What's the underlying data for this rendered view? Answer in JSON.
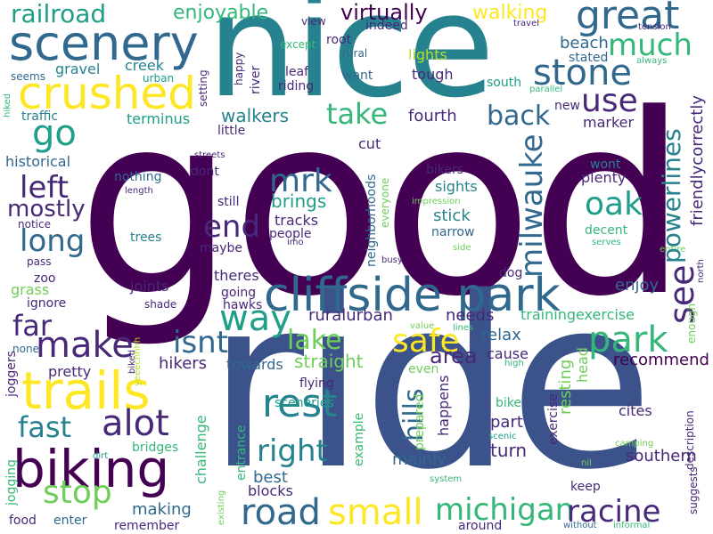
{
  "background": "#ffffff",
  "palette": {
    "dark_purple": "#440154",
    "indigo": "#482878",
    "blue": "#3b528b",
    "steel": "#31688e",
    "teal": "#26828e",
    "green_teal": "#1f9e89",
    "green": "#35b779",
    "light_green": "#6ece58",
    "lime": "#b5de2b",
    "yellow": "#fde725"
  },
  "words": {
    "good": "good",
    "ride": "ride",
    "nice": "nice",
    "cliffside_park": "cliffside park",
    "biking": "biking",
    "scenery": "scenery",
    "crushed": "crushed",
    "trails": "trails",
    "great": "great",
    "stone": "stone",
    "much": "much",
    "use": "use",
    "back": "back",
    "take": "take",
    "go": "go",
    "railroad": "railroad",
    "enjoyable": "enjoyable",
    "virtually": "virtually",
    "walking": "walking",
    "mrk": "mrk",
    "left": "left",
    "mostly": "mostly",
    "long": "long",
    "end": "end",
    "brings": "brings",
    "tracks": "tracks",
    "people": "people",
    "milwauke": "milwauke",
    "oak": "oak",
    "powerlines": "powerlines",
    "see": "see",
    "friendlycorrectly": "friendlycorrectly",
    "way": "way",
    "far": "far",
    "make": "make",
    "isnt": "isnt",
    "alot": "alot",
    "fast": "fast",
    "stop": "stop",
    "rest": "rest",
    "right": "right",
    "road": "road",
    "small": "small",
    "michigan": "michigan",
    "racine": "racine",
    "park": "park",
    "safe": "safe",
    "lake": "lake",
    "hills": "hills",
    "area": "area",
    "straight": "straight",
    "hikers": "hikers",
    "recommend": "recommend",
    "resting": "resting",
    "exercise": "exercise",
    "part": "part",
    "turn": "turn",
    "southern": "southern",
    "mainly": "mainly",
    "making": "making",
    "best": "best",
    "blocks": "blocks",
    "sceneries": "sceneries",
    "bike": "bike",
    "cites": "cites",
    "keep": "keep",
    "head": "head",
    "enjoy": "enjoy",
    "ruralurban": "ruralurban",
    "needs": "needs",
    "trainingexercise": "trainingexercise",
    "relax": "relax",
    "cause": "cause",
    "even": "even",
    "happens": "happens",
    "prepared": "prepared",
    "example": "example",
    "entrance": "entrance",
    "flying": "flying",
    "towards": "towards",
    "pretty": "pretty",
    "none": "none",
    "joggers": "joggers",
    "jogging": "jogging",
    "food": "food",
    "enter": "enter",
    "remember": "remember",
    "around": "around",
    "without": "without",
    "informal": "informal",
    "suggests": "suggests",
    "description": "description",
    "camping": "camping",
    "nil": "nil",
    "system": "system",
    "dirt": "dirt",
    "existing": "existing",
    "bridges": "bridges",
    "challenge": "challenge",
    "biked": "biked",
    "yeeechhhh": "yeeechhhh",
    "scenic": "scenic",
    "high": "high",
    "lines": "lines",
    "value": "value",
    "busy": "busy",
    "side": "side",
    "imo": "imo",
    "narrow": "narrow",
    "stick": "stick",
    "neighborhoods": "neighborhoods",
    "everyone": "everyone",
    "impression": "impression",
    "bikers": "bikers",
    "sights": "sights",
    "wont": "wont",
    "plenty": "plenty",
    "decent": "decent",
    "serves": "serves",
    "entire": "entire",
    "north": "north",
    "enough": "enough",
    "dog": "dog",
    "zoo": "zoo",
    "grass": "grass",
    "ignore": "ignore",
    "pass": "pass",
    "notice": "notice",
    "trees": "trees",
    "joints": "joints",
    "shade": "shade",
    "hawks": "hawks",
    "going": "going",
    "theres": "theres",
    "maybe": "maybe",
    "still": "still",
    "dont": "dont",
    "nothing": "nothing",
    "length": "length",
    "streets": "streets",
    "little": "little",
    "historical": "historical",
    "cut": "cut",
    "fourth": "fourth",
    "walkers": "walkers",
    "terminus": "terminus",
    "traffic": "traffic",
    "gravel": "gravel",
    "creek": "creek",
    "urban": "urban",
    "seems": "seems",
    "hiked": "hiked",
    "setting": "setting",
    "happy": "happy",
    "river": "river",
    "leaf": "leaf",
    "riding": "riding",
    "want": "want",
    "rural": "rural",
    "root": "root",
    "indeed": "indeed",
    "except": "except",
    "view": "view",
    "lights": "lights",
    "tough": "tough",
    "south": "south",
    "beach": "beach",
    "stated": "stated",
    "travel": "travel",
    "tension": "tension",
    "always": "always",
    "parallel": "parallel",
    "new": "new",
    "marker": "marker"
  }
}
